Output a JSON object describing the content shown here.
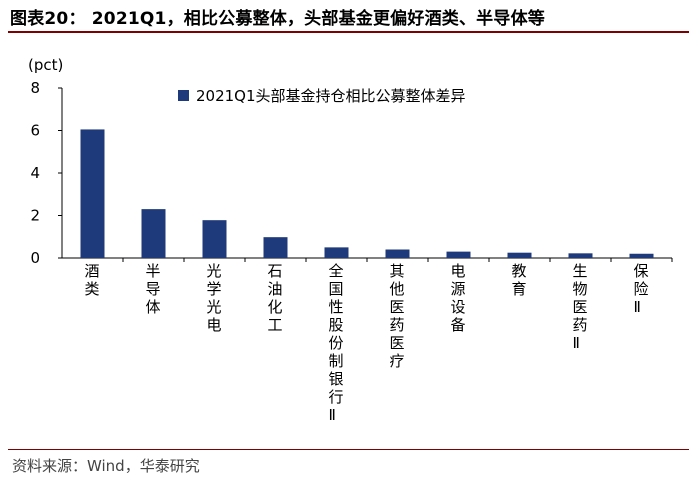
{
  "header": {
    "title": "图表20：  2021Q1，相比公募整体，头部基金更偏好酒类、半导体等"
  },
  "footer": {
    "source": "资料来源：Wind，华泰研究"
  },
  "colors": {
    "bar": "#1f3a7a",
    "rule": "#7f0000"
  },
  "chart_data": {
    "type": "bar",
    "ylabel": "(pct)",
    "ylim": [
      0,
      8
    ],
    "yticks": [
      0,
      2,
      4,
      6,
      8
    ],
    "legend": "2021Q1头部基金持仓相比公募整体差异",
    "legend_position": "top-center",
    "grid": false,
    "categories": [
      "酒类",
      "半导体",
      "光学光电",
      "石油化工",
      "全国性股份制银行Ⅱ",
      "其他医药医疗",
      "电源设备",
      "教育",
      "生物医药Ⅱ",
      "保险Ⅱ"
    ],
    "values": [
      6.05,
      2.3,
      1.78,
      0.98,
      0.5,
      0.4,
      0.3,
      0.25,
      0.22,
      0.2
    ]
  }
}
